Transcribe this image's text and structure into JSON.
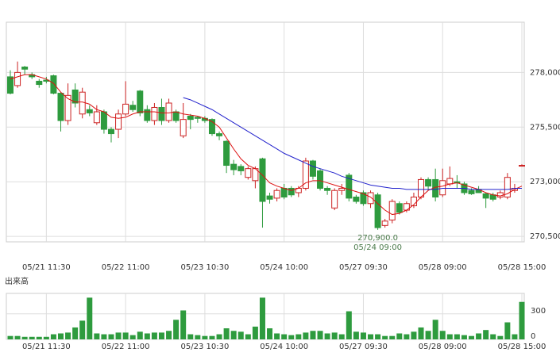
{
  "chart_data": {
    "type": "candlestick",
    "categories": [
      null,
      null,
      null,
      null,
      null,
      "05/21 11:30",
      null,
      null,
      null,
      null,
      null,
      null,
      null,
      null,
      null,
      null,
      "05/22 11:00",
      null,
      null,
      null,
      null,
      null,
      null,
      null,
      null,
      null,
      null,
      "05/23 10:30",
      null,
      null,
      null,
      null,
      null,
      null,
      null,
      null,
      null,
      null,
      "05/24 10:00",
      null,
      null,
      null,
      null,
      null,
      null,
      null,
      null,
      null,
      null,
      "05/27 09:30",
      null,
      null,
      null,
      null,
      null,
      null,
      null,
      null,
      null,
      null,
      "05/28 09:00",
      null,
      null,
      null,
      null,
      null,
      null,
      null,
      null,
      null,
      null,
      "05/28 15:00"
    ],
    "ylim": [
      270250,
      280300
    ],
    "yticks": [
      {
        "value": 270500,
        "label": "270,500"
      },
      {
        "value": 273000,
        "label": "273,000"
      },
      {
        "value": 275500,
        "label": "275,500"
      },
      {
        "value": 278000,
        "label": "278,000"
      }
    ],
    "grid": true,
    "candles": {
      "up_color": "#cc2222",
      "down_color": "#2e9b3e",
      "open": [
        277800,
        277400,
        278250,
        277900,
        277600,
        277650,
        277850,
        277050,
        275800,
        277200,
        276100,
        276300,
        275700,
        276200,
        275400,
        275400,
        276100,
        276500,
        277150,
        276300,
        275800,
        276400,
        275800,
        276200,
        275100,
        276000,
        275950,
        275900,
        275850,
        275200,
        274850,
        273800,
        273700,
        273200,
        273050,
        274050,
        272350,
        272250,
        272700,
        272700,
        272500,
        272700,
        273950,
        273500,
        272700,
        271800,
        272600,
        273300,
        272300,
        272500,
        272000,
        272400,
        271000,
        271250,
        272000,
        271700,
        271900,
        272300,
        273100,
        273100,
        272400,
        272900,
        273000,
        272900,
        272600,
        272650,
        272450,
        272400,
        272300,
        272300,
        272600,
        273750
      ],
      "high": [
        278100,
        278500,
        278300,
        278000,
        277700,
        277800,
        277900,
        277100,
        277500,
        277500,
        277300,
        276500,
        276500,
        276300,
        275500,
        276300,
        277600,
        276700,
        277200,
        276500,
        276600,
        276800,
        276800,
        276300,
        276600,
        276100,
        276000,
        276000,
        275900,
        275300,
        274900,
        274000,
        273800,
        273700,
        273700,
        274100,
        272500,
        272700,
        272900,
        272800,
        272800,
        274100,
        274000,
        273600,
        272800,
        272700,
        272900,
        273400,
        272400,
        272600,
        272600,
        272500,
        271300,
        272200,
        272100,
        272100,
        272500,
        273200,
        273200,
        273600,
        273600,
        273700,
        273300,
        273000,
        272700,
        272800,
        272500,
        272500,
        272600,
        273400,
        272900,
        273800
      ],
      "low": [
        277000,
        277300,
        277900,
        277700,
        277300,
        277500,
        277000,
        275300,
        275600,
        276400,
        275900,
        276000,
        275600,
        275200,
        274800,
        275000,
        276000,
        276200,
        276000,
        275700,
        275600,
        275600,
        275700,
        275700,
        275000,
        275400,
        275700,
        275700,
        275100,
        274900,
        273400,
        273300,
        273300,
        273100,
        272700,
        270900,
        272000,
        272100,
        272200,
        272300,
        272300,
        272600,
        273100,
        272600,
        272400,
        271700,
        272400,
        272100,
        272000,
        271900,
        271800,
        270800,
        270900,
        271100,
        271500,
        271600,
        271800,
        272200,
        272600,
        272100,
        272300,
        272800,
        272700,
        272400,
        272400,
        272500,
        271800,
        272100,
        272200,
        272200,
        272500,
        273700
      ],
      "close": [
        277050,
        278000,
        278150,
        277800,
        277450,
        277600,
        277050,
        275800,
        276950,
        276600,
        277100,
        276150,
        276200,
        275400,
        275200,
        276100,
        276550,
        276300,
        276150,
        275800,
        276400,
        275800,
        276600,
        275800,
        275850,
        275850,
        275900,
        275800,
        275200,
        275100,
        273750,
        273550,
        273500,
        273600,
        273600,
        272100,
        272200,
        272600,
        272300,
        272400,
        272700,
        273950,
        273250,
        272700,
        272600,
        272600,
        272700,
        272250,
        272100,
        272000,
        272500,
        270900,
        271200,
        272100,
        271600,
        272000,
        272300,
        273100,
        272800,
        272300,
        273050,
        273150,
        272950,
        272500,
        272450,
        272500,
        272250,
        272200,
        272500,
        273200,
        272700,
        273750
      ]
    },
    "series": [
      {
        "color": "#dd1111",
        "values": [
          277700,
          277800,
          277900,
          277900,
          277800,
          277700,
          277500,
          277100,
          276800,
          276650,
          276650,
          276550,
          276300,
          276200,
          275950,
          275900,
          275950,
          276100,
          276200,
          276200,
          276200,
          276150,
          276150,
          276200,
          276100,
          276050,
          276000,
          275900,
          275750,
          275500,
          275000,
          274500,
          274050,
          273750,
          273600,
          273300,
          272950,
          272800,
          272700,
          272600,
          272700,
          272950,
          273050,
          273050,
          272950,
          272850,
          272750,
          272650,
          272550,
          272450,
          272300,
          272000,
          271700,
          271500,
          271550,
          271700,
          271950,
          272300,
          272600,
          272750,
          272800,
          272900,
          272950,
          272850,
          272750,
          272650,
          272500,
          272400,
          272350,
          272450,
          272650,
          272800
        ]
      },
      {
        "color": "#2222cc",
        "values": [
          null,
          null,
          null,
          null,
          null,
          null,
          null,
          null,
          null,
          null,
          null,
          null,
          null,
          null,
          null,
          null,
          null,
          null,
          null,
          null,
          null,
          null,
          null,
          null,
          276850,
          276750,
          276600,
          276450,
          276300,
          276100,
          275900,
          275700,
          275500,
          275300,
          275100,
          274900,
          274700,
          274500,
          274300,
          274150,
          274000,
          273850,
          273700,
          273600,
          273500,
          273400,
          273250,
          273150,
          273050,
          272950,
          272850,
          272800,
          272750,
          272700,
          272700,
          272650,
          272650,
          272650,
          272650,
          272650,
          272700,
          272700,
          272700,
          272700,
          272650,
          272650,
          272650,
          272650,
          272650,
          272650,
          272700,
          272700
        ]
      }
    ],
    "annotations": [
      {
        "label": "270,900.0",
        "date": "05/24 09:00"
      }
    ],
    "volume": {
      "label": "出来高",
      "color": "#2e9b3e",
      "ylim": [
        0,
        540
      ],
      "yticks": [
        0,
        300
      ],
      "values": [
        40,
        40,
        30,
        30,
        30,
        30,
        60,
        70,
        80,
        140,
        220,
        490,
        70,
        60,
        60,
        80,
        80,
        50,
        90,
        70,
        80,
        80,
        100,
        230,
        340,
        60,
        50,
        40,
        40,
        60,
        130,
        100,
        90,
        60,
        150,
        490,
        130,
        70,
        60,
        50,
        60,
        80,
        100,
        100,
        70,
        80,
        60,
        330,
        90,
        80,
        60,
        60,
        40,
        40,
        70,
        60,
        90,
        140,
        100,
        230,
        100,
        60,
        60,
        50,
        40,
        70,
        110,
        60,
        40,
        200,
        60,
        440
      ]
    }
  }
}
